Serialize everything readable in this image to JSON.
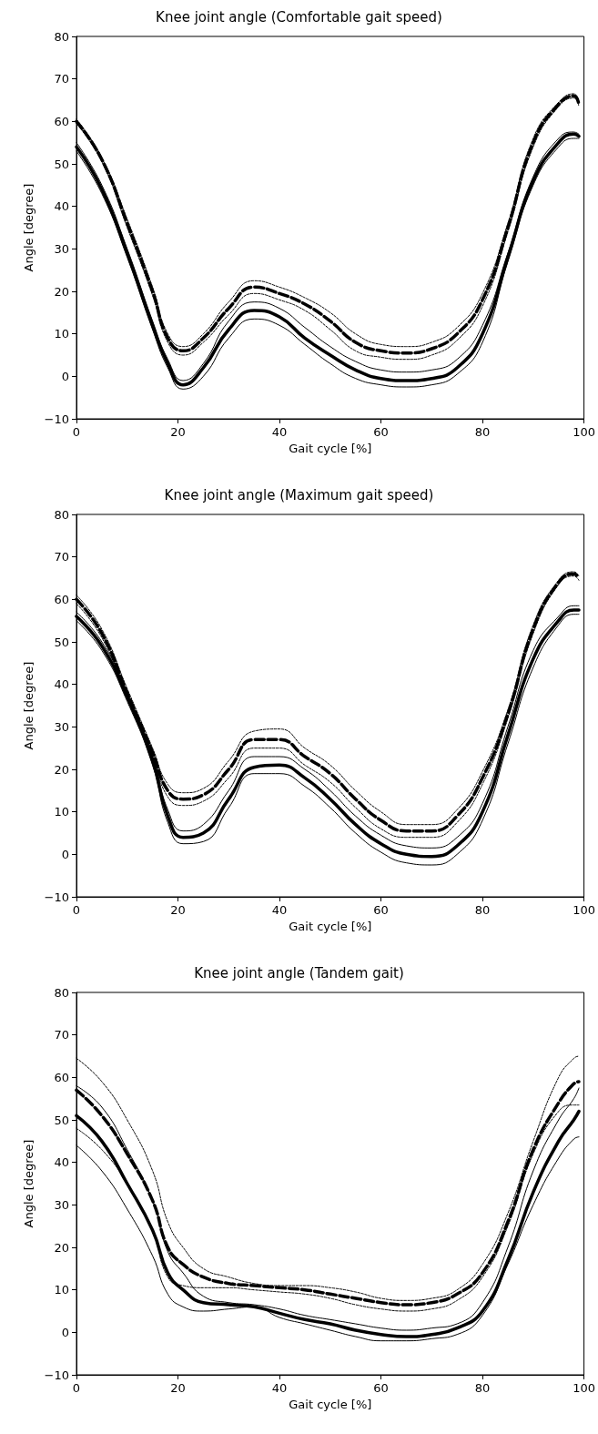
{
  "chart_data": [
    {
      "type": "line",
      "title": "Knee joint angle (Comfortable gait speed)",
      "xlabel": "Gait cycle [%]",
      "ylabel": "Angle [degree]",
      "x": [
        0,
        5,
        10,
        15,
        18,
        21,
        25,
        30,
        35,
        40,
        45,
        50,
        55,
        60,
        65,
        70,
        75,
        80,
        85,
        90,
        95,
        98,
        99
      ],
      "series": [
        {
          "color": "#000000",
          "line_style": "solid",
          "values": [
            54,
            44,
            29,
            12,
            3,
            -2,
            2,
            11,
            15.5,
            14,
            9,
            5,
            1.5,
            -0.5,
            -1,
            -0.5,
            2,
            10,
            28,
            46,
            55,
            57,
            56.5
          ]
        },
        {
          "color": "#000000",
          "line_style": "solid",
          "values": [
            55,
            45,
            30,
            13,
            4,
            -1,
            3,
            13,
            17.5,
            16,
            11.5,
            7,
            3.5,
            1.5,
            1,
            1.5,
            4,
            12,
            29,
            47,
            56,
            57.5,
            57
          ]
        },
        {
          "color": "#000000",
          "line_style": "solid",
          "values": [
            53,
            43,
            28,
            11,
            2,
            -3,
            0,
            9,
            13.5,
            12,
            7.5,
            3,
            -0.5,
            -2,
            -2.5,
            -2,
            0.5,
            8,
            27,
            45,
            54,
            56,
            56
          ]
        },
        {
          "color": "#000000",
          "line_style": "dashed",
          "values": [
            60,
            51,
            36,
            20,
            9,
            6,
            9,
            16,
            21,
            19.5,
            17,
            13,
            8,
            6,
            5.5,
            6.5,
            10,
            18,
            35,
            55,
            64,
            66,
            64
          ]
        },
        {
          "color": "#000000",
          "line_style": "dashed",
          "values": [
            60.5,
            51.5,
            37,
            21,
            10,
            7,
            10,
            17.5,
            22.5,
            21,
            18.5,
            15,
            10,
            7.5,
            7,
            8,
            11.5,
            19.5,
            36,
            56,
            64.5,
            66.5,
            64.5
          ]
        },
        {
          "color": "#000000",
          "line_style": "dashed",
          "values": [
            59.5,
            50.5,
            35,
            19,
            8,
            5,
            8,
            14.5,
            19.5,
            18,
            15.5,
            11,
            6,
            4.5,
            4,
            5,
            8.5,
            16.5,
            34,
            54,
            63.5,
            65.5,
            63.5
          ]
        }
      ],
      "xlim": [
        0,
        100
      ],
      "xticks": [
        0,
        20,
        40,
        60,
        80,
        100
      ],
      "ylim": [
        -10,
        80
      ],
      "yticks": [
        -10,
        0,
        10,
        20,
        30,
        40,
        50,
        60,
        70,
        80
      ],
      "grid": false,
      "marker": "none"
    },
    {
      "type": "line",
      "title": "Knee joint angle (Maximum gait speed)",
      "xlabel": "Gait cycle [%]",
      "ylabel": "Angle [degree]",
      "x": [
        0,
        5,
        10,
        15,
        18,
        21,
        25,
        30,
        35,
        40,
        45,
        50,
        55,
        60,
        65,
        70,
        75,
        80,
        85,
        90,
        95,
        98,
        99
      ],
      "series": [
        {
          "color": "#000000",
          "line_style": "solid",
          "values": [
            56,
            49,
            37,
            22,
            9,
            4,
            5,
            13,
            20.5,
            21,
            18,
            13,
            7,
            2.5,
            0,
            -0.5,
            2,
            10,
            28,
            46,
            55,
            57.5,
            57.5
          ]
        },
        {
          "color": "#000000",
          "line_style": "solid",
          "values": [
            57,
            50,
            38,
            23,
            10.5,
            5.5,
            7,
            15,
            23,
            23,
            20,
            15,
            9,
            4.5,
            2,
            1.5,
            4,
            12,
            30,
            48,
            56,
            58.5,
            58.5
          ]
        },
        {
          "color": "#000000",
          "line_style": "solid",
          "values": [
            55,
            48,
            36,
            21,
            7.5,
            2.5,
            3,
            11,
            19,
            19,
            16,
            11,
            5,
            0.5,
            -2,
            -2.5,
            0,
            8,
            26,
            44,
            54,
            56.5,
            56.5
          ]
        },
        {
          "color": "#000000",
          "line_style": "dashed",
          "values": [
            60,
            52,
            38,
            24,
            15,
            13,
            14,
            20,
            27,
            27,
            23,
            19,
            13,
            8,
            5.5,
            5.5,
            9,
            18,
            33,
            53,
            64,
            66,
            65
          ]
        },
        {
          "color": "#000000",
          "line_style": "dashed",
          "values": [
            61,
            53,
            39,
            25,
            16.5,
            14.5,
            15.5,
            22,
            29,
            29.5,
            25,
            21,
            15,
            10,
            7,
            7,
            10.5,
            19.5,
            34,
            54,
            64.5,
            66.5,
            65.5
          ]
        },
        {
          "color": "#000000",
          "line_style": "dashed",
          "values": [
            59,
            51,
            37,
            23,
            13.5,
            11.5,
            12.5,
            18,
            25,
            25,
            21,
            17,
            11,
            6,
            4,
            4,
            7.5,
            16.5,
            32,
            52,
            63.5,
            65.5,
            64.5
          ]
        }
      ],
      "xlim": [
        0,
        100
      ],
      "xticks": [
        0,
        20,
        40,
        60,
        80,
        100
      ],
      "ylim": [
        -10,
        80
      ],
      "yticks": [
        -10,
        0,
        10,
        20,
        30,
        40,
        50,
        60,
        70,
        80
      ],
      "grid": false,
      "marker": "none"
    },
    {
      "type": "line",
      "title": "Knee joint angle (Tandem gait)",
      "xlabel": "Gait cycle [%]",
      "ylabel": "Angle [degree]",
      "x": [
        0,
        5,
        10,
        15,
        18,
        21,
        25,
        30,
        35,
        40,
        45,
        50,
        55,
        60,
        65,
        70,
        75,
        80,
        85,
        90,
        95,
        98,
        99
      ],
      "series": [
        {
          "color": "#000000",
          "line_style": "solid",
          "values": [
            51,
            45,
            35,
            24,
            14,
            10,
            7,
            6.5,
            6,
            4.5,
            3,
            2,
            0.5,
            -0.5,
            -1,
            -0.5,
            1,
            5,
            17,
            33,
            45,
            50,
            52
          ]
        },
        {
          "color": "#000000",
          "line_style": "solid",
          "values": [
            58,
            53,
            43,
            31,
            19,
            14,
            8.5,
            7,
            6.5,
            5.5,
            4,
            3,
            2,
            1,
            0.5,
            1,
            2,
            7,
            20,
            38,
            50,
            55,
            57.5
          ]
        },
        {
          "color": "#000000",
          "line_style": "solid",
          "values": [
            44,
            38,
            29,
            18,
            9,
            6,
            5,
            5.5,
            6,
            3.5,
            2,
            0.5,
            -1,
            -2,
            -2,
            -1.5,
            -0.5,
            4,
            16,
            30,
            41,
            45.5,
            46
          ]
        },
        {
          "color": "#000000",
          "line_style": "dashed",
          "values": [
            57,
            51,
            42,
            31,
            20,
            16,
            13,
            11.5,
            11,
            10.5,
            10,
            9,
            8,
            7,
            6.5,
            7,
            9,
            14,
            26,
            43,
            54,
            58.5,
            59
          ]
        },
        {
          "color": "#000000",
          "line_style": "dashed",
          "values": [
            64.5,
            59,
            50,
            38,
            26,
            20,
            15,
            13,
            11.5,
            11,
            11,
            10.5,
            9.5,
            8,
            7.5,
            8,
            10,
            16,
            28,
            45,
            60,
            64.5,
            65
          ]
        },
        {
          "color": "#000000",
          "line_style": "dashed",
          "values": [
            48,
            43,
            35,
            24,
            13,
            11,
            10.5,
            10.5,
            10,
            9.5,
            9,
            8,
            6.5,
            5.5,
            5,
            5.5,
            7.5,
            13,
            25,
            42,
            52,
            53.5,
            53.5
          ]
        }
      ],
      "xlim": [
        0,
        100
      ],
      "xticks": [
        0,
        20,
        40,
        60,
        80,
        100
      ],
      "ylim": [
        -10,
        80
      ],
      "yticks": [
        -10,
        0,
        10,
        20,
        30,
        40,
        50,
        60,
        70,
        80
      ],
      "grid": false,
      "marker": "none"
    }
  ]
}
